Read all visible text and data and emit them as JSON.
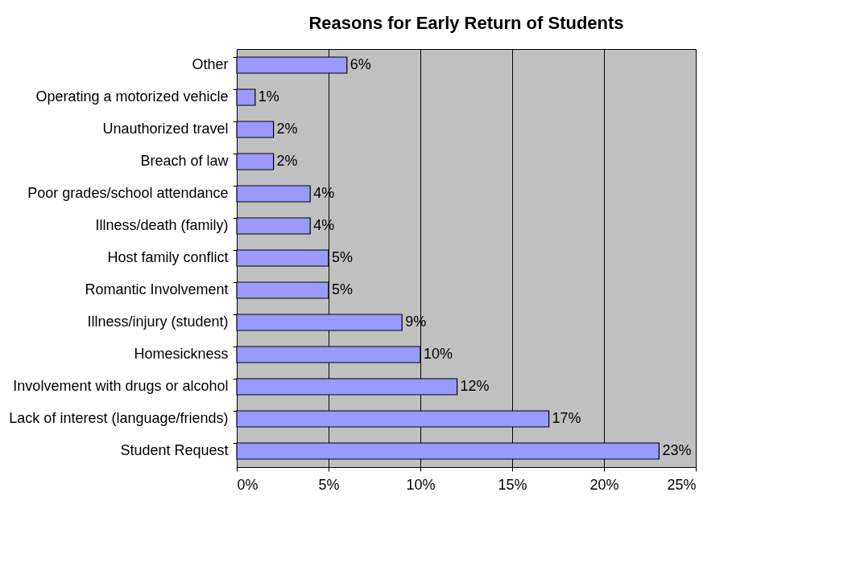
{
  "chart_data": {
    "type": "bar",
    "orientation": "horizontal",
    "title": "Reasons for Early Return of Students",
    "categories": [
      "Other",
      "Operating a motorized vehicle",
      "Unauthorized travel",
      "Breach of law",
      "Poor grades/school attendance",
      "Illness/death (family)",
      "Host family conflict",
      "Romantic Involvement ",
      "Illness/injury (student)",
      "Homesickness",
      "Involvement with drugs or alcohol",
      "Lack of interest (language/friends)",
      "Student Request"
    ],
    "values": [
      6,
      1,
      2,
      2,
      4,
      4,
      5,
      5,
      9,
      10,
      12,
      17,
      23
    ],
    "value_labels": [
      "6%",
      "1%",
      "2%",
      "2%",
      "4%",
      "4%",
      "5%",
      "5%",
      "9%",
      "10%",
      "12%",
      "17%",
      "23%"
    ],
    "color": "#9999ff",
    "xlim": [
      0,
      25
    ],
    "xticks": [
      {
        "value": 0,
        "label": "0%"
      },
      {
        "value": 5,
        "label": "5%"
      },
      {
        "value": 10,
        "label": "10%"
      },
      {
        "value": 15,
        "label": "15%"
      },
      {
        "value": 20,
        "label": "20%"
      },
      {
        "value": 25,
        "label": "25%"
      }
    ],
    "grid": "x"
  }
}
